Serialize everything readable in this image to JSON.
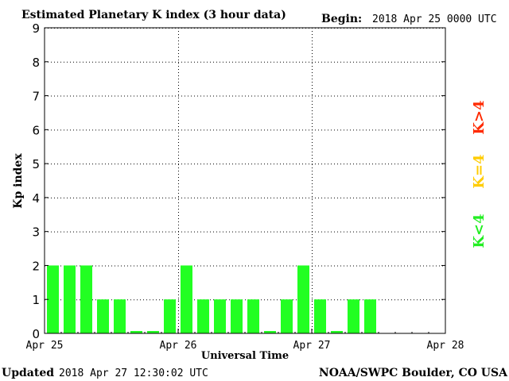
{
  "header": {
    "title": "Estimated Planetary K index (3 hour data)",
    "begin_label": "Begin:",
    "begin_value": "2018 Apr 25 0000 UTC"
  },
  "footer": {
    "updated_label": "Updated",
    "updated_value": "2018 Apr 27 12:30:02 UTC",
    "source": "NOAA/SWPC Boulder, CO USA"
  },
  "legend": {
    "storm": "K>4",
    "equal": "K=4",
    "quiet": "K<4",
    "colors": {
      "storm": "#ff2a00",
      "equal": "#ffcc00",
      "quiet": "#22ee22"
    }
  },
  "chart_data": {
    "type": "bar",
    "title": "Estimated Planetary K index (3 hour data)",
    "xlabel": "Universal Time",
    "ylabel": "Kp index",
    "ylim": [
      0,
      9
    ],
    "yticks": [
      "0",
      "1",
      "2",
      "3",
      "4",
      "5",
      "6",
      "7",
      "8",
      "9"
    ],
    "x_range_hours": [
      0,
      72
    ],
    "xticks": [
      {
        "label": "Apr 25",
        "hour": 0
      },
      {
        "label": "Apr 26",
        "hour": 24
      },
      {
        "label": "Apr 27",
        "hour": 48
      },
      {
        "label": "Apr 28",
        "hour": 72
      }
    ],
    "bin_hours": 3,
    "values": [
      2,
      2,
      2,
      1,
      1,
      0.07,
      0.07,
      1,
      2,
      1,
      1,
      1,
      1,
      0.07,
      1,
      2,
      1,
      0.07,
      1,
      1
    ],
    "bar_color": "#22ff22",
    "grid": true
  }
}
